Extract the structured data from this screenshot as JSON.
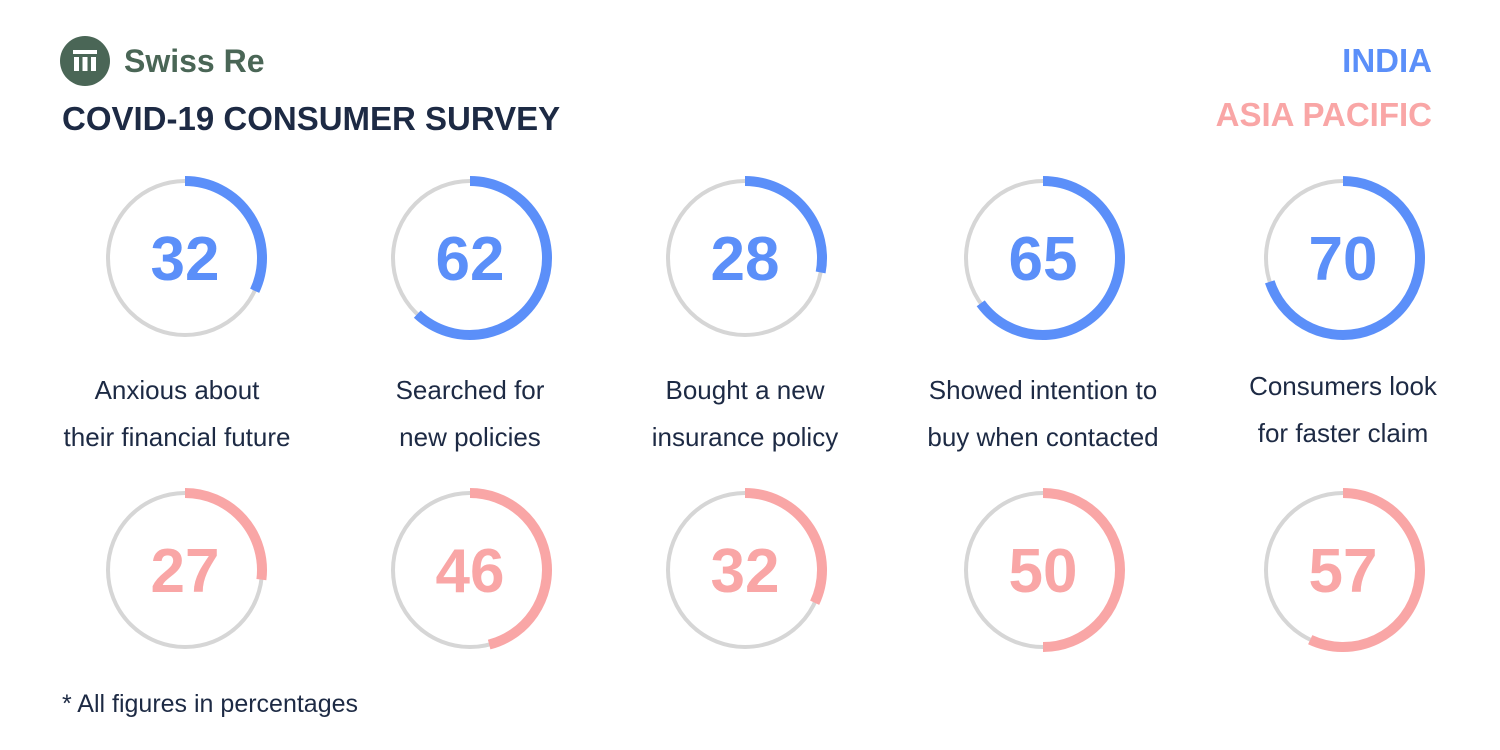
{
  "brand": {
    "name": "Swiss Re",
    "color": "#4a6656"
  },
  "title": "COVID-19 CONSUMER SURVEY",
  "footnote": "* All figures in percentages",
  "chart_data": {
    "type": "radial-gauge",
    "unit": "percent",
    "max": 100,
    "legend_placement": "top-right",
    "categories": [
      "Anxious about their financial future",
      "Searched for new policies",
      "Bought a new insurance policy",
      "Showed intention to buy  when contacted",
      "Consumers look for faster claim"
    ],
    "category_lines": [
      [
        "Anxious about",
        "their financial future"
      ],
      [
        "Searched for",
        "new policies"
      ],
      [
        "Bought a new",
        "insurance policy"
      ],
      [
        "Showed intention to",
        "buy  when contacted"
      ],
      [
        "Consumers look",
        "for faster claim"
      ]
    ],
    "series": [
      {
        "name": "INDIA",
        "color": "#5b8ff9",
        "values": [
          32,
          62,
          28,
          65,
          70
        ]
      },
      {
        "name": "ASIA PACIFIC",
        "color": "#f9a6a6",
        "values": [
          27,
          46,
          32,
          50,
          57
        ]
      }
    ],
    "track_color": "#d6d6d6"
  }
}
